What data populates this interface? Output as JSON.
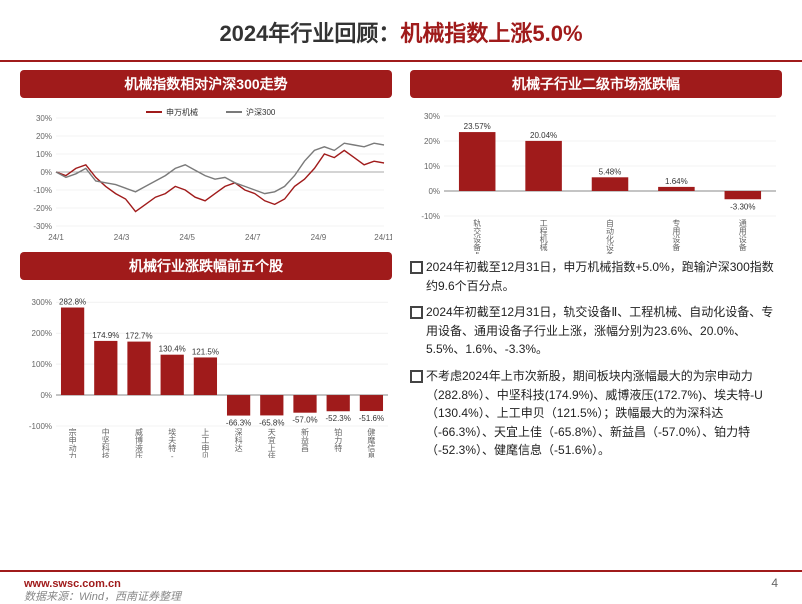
{
  "title": {
    "prefix": "2024年行业回顾：",
    "highlight": "机械指数上涨5.0%"
  },
  "footer": {
    "site": "www.swsc.com.cn",
    "source": "数据来源：Wind，西南证券整理",
    "page": "4"
  },
  "panel1": {
    "header": "机械指数相对沪深300走势",
    "legend": [
      {
        "name": "申万机械",
        "color": "#a01b1b"
      },
      {
        "name": "沪深300",
        "color": "#7a7a7a"
      }
    ],
    "x_labels": [
      "24/1",
      "24/3",
      "24/5",
      "24/7",
      "24/9",
      "24/11"
    ],
    "y_ticks": [
      -30,
      -20,
      -10,
      0,
      10,
      20,
      30
    ],
    "y_labels": [
      "-30%",
      "-20%",
      "-10%",
      "0%",
      "10%",
      "20%",
      "30%"
    ],
    "ylim": [
      -30,
      30
    ],
    "bg": "#ffffff",
    "grid": "#e8e8e8",
    "series": [
      {
        "color": "#a01b1b",
        "width": 1.4,
        "data": [
          0,
          -2,
          2,
          4,
          -3,
          -8,
          -12,
          -15,
          -22,
          -18,
          -14,
          -12,
          -8,
          -10,
          -14,
          -16,
          -12,
          -8,
          -6,
          -10,
          -12,
          -16,
          -18,
          -15,
          -8,
          -4,
          2,
          10,
          8,
          12,
          8,
          4,
          6,
          5
        ]
      },
      {
        "color": "#7a7a7a",
        "width": 1.4,
        "data": [
          0,
          -3,
          -1,
          2,
          -5,
          -6,
          -7,
          -9,
          -11,
          -8,
          -5,
          -2,
          2,
          4,
          1,
          -2,
          -4,
          -3,
          -6,
          -8,
          -10,
          -12,
          -11,
          -8,
          -2,
          6,
          12,
          14,
          12,
          16,
          15,
          14,
          16,
          15
        ]
      }
    ]
  },
  "panel2": {
    "header": "机械行业涨跌幅前五个股",
    "y_ticks": [
      -100,
      0,
      100,
      200,
      300
    ],
    "y_labels": [
      "-100%",
      "0%",
      "100%",
      "200%",
      "300%"
    ],
    "ylim": [
      -100,
      320
    ],
    "bg": "#ffffff",
    "grid": "#e8e8e8",
    "bars": [
      {
        "label": "宗申动力",
        "value": 282.8,
        "text": "282.8%",
        "color": "#a01b1b"
      },
      {
        "label": "中坚科技",
        "value": 174.9,
        "text": "174.9%",
        "color": "#a01b1b"
      },
      {
        "label": "威博液压",
        "value": 172.7,
        "text": "172.7%",
        "color": "#a01b1b"
      },
      {
        "label": "埃夫特-U",
        "value": 130.4,
        "text": "130.4%",
        "color": "#a01b1b"
      },
      {
        "label": "上工申贝",
        "value": 121.5,
        "text": "121.5%",
        "color": "#a01b1b"
      },
      {
        "label": "深科达",
        "value": -66.3,
        "text": "-66.3%",
        "color": "#a01b1b"
      },
      {
        "label": "天宜上佳",
        "value": -65.8,
        "text": "-65.8%",
        "color": "#a01b1b"
      },
      {
        "label": "新益昌",
        "value": -57.0,
        "text": "-57.0%",
        "color": "#a01b1b"
      },
      {
        "label": "铂力特",
        "value": -52.3,
        "text": "-52.3%",
        "color": "#a01b1b"
      },
      {
        "label": "健麾信息",
        "value": -51.6,
        "text": "-51.6%",
        "color": "#a01b1b"
      }
    ]
  },
  "panel3": {
    "header": "机械子行业二级市场涨跌幅",
    "y_ticks": [
      -10,
      0,
      10,
      20,
      30
    ],
    "y_labels": [
      "-10%",
      "0%",
      "10%",
      "20%",
      "30%"
    ],
    "ylim": [
      -10,
      30
    ],
    "bg": "#ffffff",
    "grid": "#e8e8e8",
    "bars": [
      {
        "label": "轨交设备Ⅱ",
        "value": 23.57,
        "text": "23.57%",
        "color": "#a01b1b"
      },
      {
        "label": "工程机械",
        "value": 20.04,
        "text": "20.04%",
        "color": "#a01b1b"
      },
      {
        "label": "自动化设备",
        "value": 5.48,
        "text": "5.48%",
        "color": "#a01b1b"
      },
      {
        "label": "专用设备",
        "value": 1.64,
        "text": "1.64%",
        "color": "#a01b1b"
      },
      {
        "label": "通用设备",
        "value": -3.3,
        "text": "-3.30%",
        "color": "#a01b1b"
      }
    ]
  },
  "bullets": [
    "2024年初截至12月31日，申万机械指数+5.0%，跑输沪深300指数约9.6个百分点。",
    "2024年初截至12月31日，轨交设备Ⅱ、工程机械、自动化设备、专用设备、通用设备子行业上涨，涨幅分别为23.6%、20.0%、5.5%、1.6%、-3.3%。",
    "不考虑2024年上市次新股，期间板块内涨幅最大的为宗申动力（282.8%）、中坚科技(174.9%)、威博液压(172.7%)、埃夫特-U（130.4%）、上工申贝（121.5%）；跌幅最大的为深科达（-66.3%）、天宜上佳（-65.8%）、新益昌（-57.0%）、铂力特（-52.3%）、健麾信息（-51.6%）。"
  ]
}
